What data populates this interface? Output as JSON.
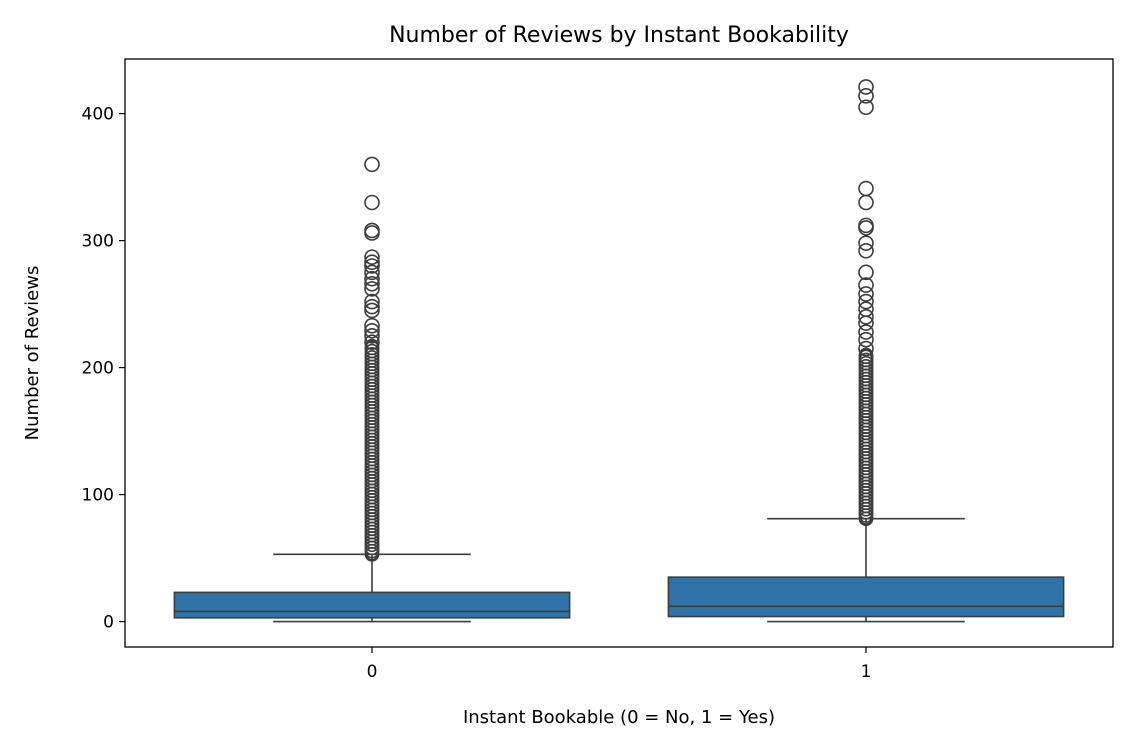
{
  "chart_data": {
    "type": "box",
    "title": "Number of Reviews by Instant Bookability",
    "xlabel": "Instant Bookable (0 = No, 1 = Yes)",
    "ylabel": "Number of Reviews",
    "categories": [
      "0",
      "1"
    ],
    "ylim": [
      -20,
      443
    ],
    "yticks": [
      0,
      100,
      200,
      300,
      400
    ],
    "grid": false,
    "legend": "none",
    "box_color": "#2f73a8",
    "line_color": "#3d3d3d",
    "boxes": [
      {
        "category": "0",
        "whisker_low": 0,
        "q1": 3,
        "median": 8,
        "q3": 23,
        "whisker_high": 53,
        "outlier_dense_range": [
          53,
          217
        ],
        "outliers": [
          220,
          225,
          229,
          233,
          245,
          248,
          252,
          262,
          266,
          270,
          275,
          280,
          283,
          287,
          306,
          308,
          330,
          360
        ]
      },
      {
        "category": "1",
        "whisker_low": 0,
        "q1": 4,
        "median": 12,
        "q3": 35,
        "whisker_high": 81,
        "outlier_dense_range": [
          81,
          210
        ],
        "outliers": [
          215,
          222,
          228,
          235,
          240,
          246,
          252,
          258,
          265,
          275,
          292,
          298,
          310,
          312,
          330,
          341,
          405,
          414,
          421
        ]
      }
    ]
  }
}
